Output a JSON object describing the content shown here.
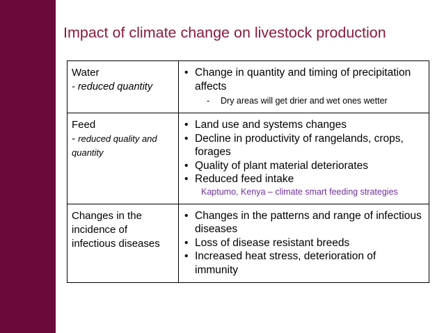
{
  "slide": {
    "title": "Impact of climate change on livestock production"
  },
  "colors": {
    "sidebar": "#6b0a3a",
    "title": "#8b1a3c",
    "note": "#7030a0"
  },
  "rows": [
    {
      "topic": "Water",
      "subtitle": "- reduced quantity",
      "bullets": [
        "Change in quantity and timing of precipitation affects"
      ],
      "dash_marker": "-",
      "dash_text": "Dry areas will get drier and wet ones wetter"
    },
    {
      "topic": "Feed",
      "subtitle_marker": "- ",
      "subtitle": "reduced quality and quantity",
      "bullets": [
        "Land use and systems changes",
        "Decline in productivity of rangelands, crops, forages",
        "Quality of plant material deteriorates",
        "Reduced feed intake"
      ],
      "note": "Kaptumo, Kenya – climate smart feeding strategies"
    },
    {
      "topic": "Changes in the incidence of infectious diseases",
      "bullets": [
        "Changes in the patterns and range of infectious diseases",
        "Loss of disease resistant breeds",
        "Increased heat stress, deterioration of immunity"
      ]
    }
  ]
}
